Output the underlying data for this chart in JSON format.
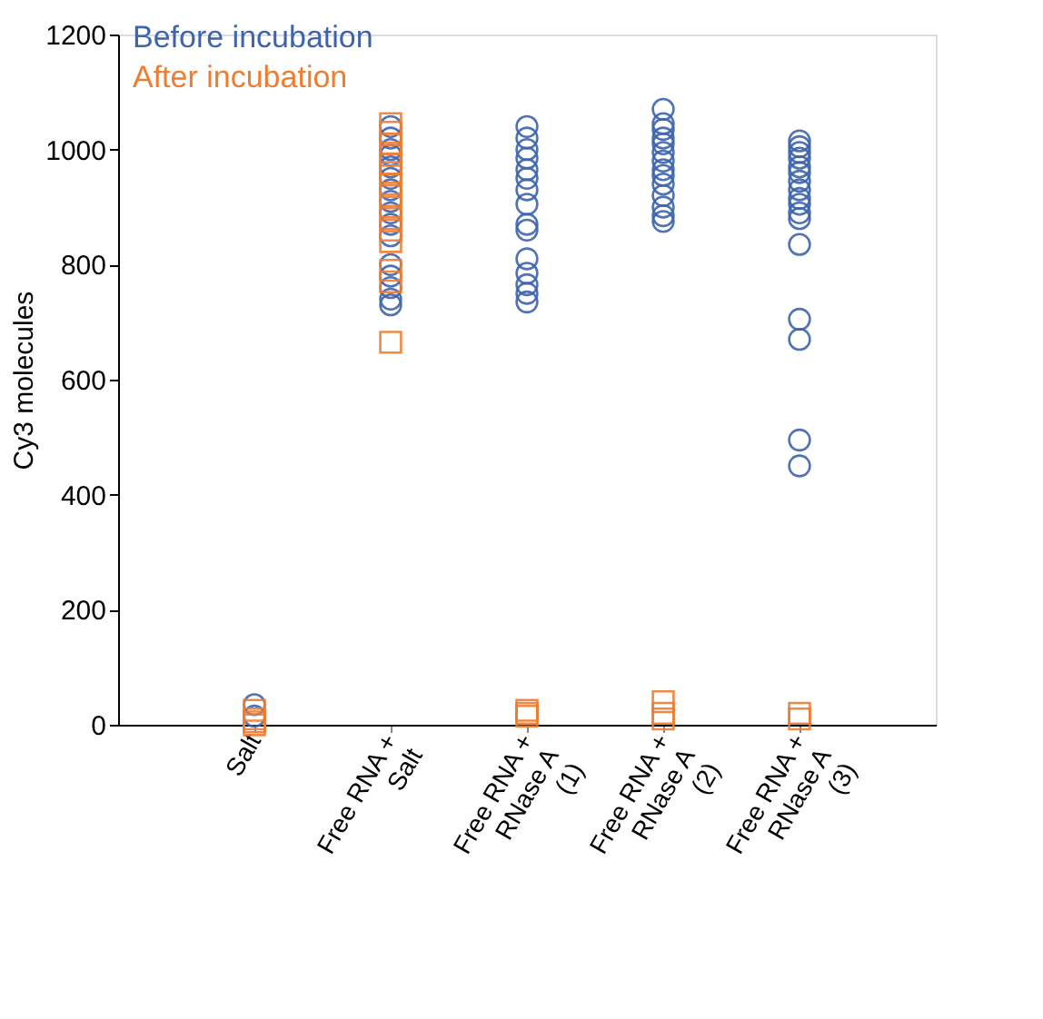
{
  "chart_data": {
    "type": "scatter",
    "ylabel": "Cy3 molecules",
    "categories": [
      "Salt",
      "Free RNA + Salt",
      "Free RNA + RNase A (1)",
      "Free RNA + RNase A (2)",
      "Free RNA + RNase A (3)"
    ],
    "ylim": [
      0,
      1200
    ],
    "yticks": [
      0,
      200,
      400,
      600,
      800,
      1000,
      1200
    ],
    "grid": false,
    "legend": "top left",
    "series": [
      {
        "name": "Before incubation",
        "color": "#3d64ad",
        "marker": "circle",
        "x": [
          "Salt",
          "Salt",
          "Free RNA + Salt",
          "Free RNA + Salt",
          "Free RNA + Salt",
          "Free RNA + Salt",
          "Free RNA + Salt",
          "Free RNA + Salt",
          "Free RNA + Salt",
          "Free RNA + Salt",
          "Free RNA + Salt",
          "Free RNA + Salt",
          "Free RNA + Salt",
          "Free RNA + Salt",
          "Free RNA + Salt",
          "Free RNA + Salt",
          "Free RNA + Salt",
          "Free RNA + Salt",
          "Free RNA + RNase A (1)",
          "Free RNA + RNase A (1)",
          "Free RNA + RNase A (1)",
          "Free RNA + RNase A (1)",
          "Free RNA + RNase A (1)",
          "Free RNA + RNase A (1)",
          "Free RNA + RNase A (1)",
          "Free RNA + RNase A (1)",
          "Free RNA + RNase A (1)",
          "Free RNA + RNase A (1)",
          "Free RNA + RNase A (1)",
          "Free RNA + RNase A (1)",
          "Free RNA + RNase A (1)",
          "Free RNA + RNase A (1)",
          "Free RNA + RNase A (1)",
          "Free RNA + RNase A (2)",
          "Free RNA + RNase A (2)",
          "Free RNA + RNase A (2)",
          "Free RNA + RNase A (2)",
          "Free RNA + RNase A (2)",
          "Free RNA + RNase A (2)",
          "Free RNA + RNase A (2)",
          "Free RNA + RNase A (2)",
          "Free RNA + RNase A (2)",
          "Free RNA + RNase A (2)",
          "Free RNA + RNase A (2)",
          "Free RNA + RNase A (2)",
          "Free RNA + RNase A (2)",
          "Free RNA + RNase A (2)",
          "Free RNA + RNase A (3)",
          "Free RNA + RNase A (3)",
          "Free RNA + RNase A (3)",
          "Free RNA + RNase A (3)",
          "Free RNA + RNase A (3)",
          "Free RNA + RNase A (3)",
          "Free RNA + RNase A (3)",
          "Free RNA + RNase A (3)",
          "Free RNA + RNase A (3)",
          "Free RNA + RNase A (3)",
          "Free RNA + RNase A (3)",
          "Free RNA + RNase A (3)",
          "Free RNA + RNase A (3)",
          "Free RNA + RNase A (3)",
          "Free RNA + RNase A (3)",
          "Free RNA + RNase A (3)",
          "Free RNA + RNase A (3)"
        ],
        "values": [
          35,
          15,
          1040,
          1020,
          1000,
          990,
          970,
          950,
          930,
          910,
          890,
          870,
          850,
          800,
          780,
          760,
          740,
          730,
          1040,
          1020,
          1000,
          985,
          965,
          950,
          930,
          905,
          870,
          860,
          810,
          785,
          765,
          750,
          735,
          1070,
          1045,
          1035,
          1020,
          1010,
          995,
          980,
          965,
          955,
          940,
          920,
          900,
          885,
          875,
          1015,
          1005,
          995,
          985,
          970,
          960,
          945,
          930,
          915,
          905,
          890,
          880,
          835,
          705,
          670,
          495,
          450
        ]
      },
      {
        "name": "After incubation",
        "color": "#ee7d31",
        "marker": "square",
        "x": [
          "Salt",
          "Salt",
          "Salt",
          "Salt",
          "Free RNA + Salt",
          "Free RNA + Salt",
          "Free RNA + Salt",
          "Free RNA + Salt",
          "Free RNA + Salt",
          "Free RNA + Salt",
          "Free RNA + Salt",
          "Free RNA + Salt",
          "Free RNA + Salt",
          "Free RNA + Salt",
          "Free RNA + Salt",
          "Free RNA + Salt",
          "Free RNA + Salt",
          "Free RNA + Salt",
          "Free RNA + Salt",
          "Free RNA + RNase A (1)",
          "Free RNA + RNase A (1)",
          "Free RNA + RNase A (1)",
          "Free RNA + RNase A (2)",
          "Free RNA + RNase A (2)",
          "Free RNA + RNase A (2)",
          "Free RNA + RNase A (3)",
          "Free RNA + RNase A (3)"
        ],
        "values": [
          25,
          10,
          5,
          0,
          1045,
          1030,
          1010,
          990,
          975,
          960,
          940,
          920,
          900,
          880,
          860,
          840,
          790,
          770,
          665,
          25,
          20,
          15,
          40,
          20,
          10,
          20,
          10
        ]
      }
    ]
  }
}
